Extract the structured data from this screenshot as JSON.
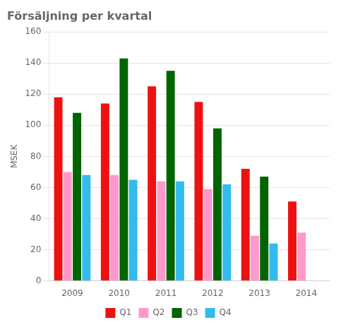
{
  "chart_data": {
    "type": "bar",
    "title": "Försäljning per kvartal",
    "ylabel": "MSEK",
    "categories": [
      "2009",
      "2010",
      "2011",
      "2012",
      "2013",
      "2014"
    ],
    "series": [
      {
        "name": "Q1",
        "color": "#EE1111",
        "values": [
          118,
          114,
          125,
          115,
          72,
          51
        ]
      },
      {
        "name": "Q2",
        "color": "#FF99CC",
        "values": [
          70,
          68,
          64,
          59,
          29,
          31
        ]
      },
      {
        "name": "Q3",
        "color": "#006400",
        "values": [
          108,
          143,
          135,
          98,
          67,
          0
        ]
      },
      {
        "name": "Q4",
        "color": "#33BBEE",
        "values": [
          68,
          65,
          64,
          62,
          24,
          0
        ]
      }
    ],
    "ylim": [
      0,
      160
    ],
    "yticks": [
      0,
      20,
      40,
      60,
      80,
      100,
      120,
      140,
      160
    ],
    "grid": true,
    "legend": "bottom"
  }
}
